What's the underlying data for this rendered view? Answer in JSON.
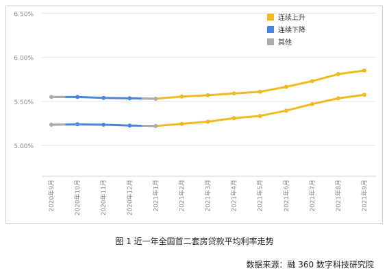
{
  "chart_data": {
    "type": "line",
    "categories": [
      "2020年9月",
      "2020年10月",
      "2020年11月",
      "2020年12月",
      "2021年1月",
      "2021年2月",
      "2021年3月",
      "2021年4月",
      "2021年5月",
      "2021年6月",
      "2021年7月",
      "2021年8月",
      "2021年9月"
    ],
    "y_ticks": [
      "5.00%",
      "5.50%",
      "6.00%",
      "6.50%"
    ],
    "ylim": [
      4.65,
      6.55
    ],
    "legend_position": "top-right",
    "grid": "horizontal",
    "colors": {
      "up": "#f0b91e",
      "down": "#4a86e0",
      "other": "#b0aba5",
      "grid": "#e2e2e2",
      "axis_text": "#888888"
    },
    "legend": [
      {
        "key": "up",
        "label": "连续上升"
      },
      {
        "key": "down",
        "label": "连续下降"
      },
      {
        "key": "other",
        "label": "其他"
      }
    ],
    "series": [
      {
        "values": [
          5.55,
          5.55,
          5.54,
          5.535,
          5.53,
          5.555,
          5.57,
          5.59,
          5.61,
          5.665,
          5.73,
          5.81,
          5.85
        ],
        "segments": [
          "down",
          "down",
          "down",
          "down",
          "up",
          "up",
          "up",
          "up",
          "up",
          "up",
          "up",
          "up"
        ]
      },
      {
        "values": [
          5.235,
          5.24,
          5.235,
          5.225,
          5.22,
          5.245,
          5.27,
          5.31,
          5.335,
          5.395,
          5.47,
          5.535,
          5.575
        ],
        "segments": [
          "down",
          "down",
          "down",
          "down",
          "up",
          "up",
          "up",
          "up",
          "up",
          "up",
          "up",
          "up"
        ]
      }
    ]
  },
  "caption": "图 1  近一年全国首二套房贷款平均利率走势",
  "source": "数据来源：融 360 数字科技研究院"
}
